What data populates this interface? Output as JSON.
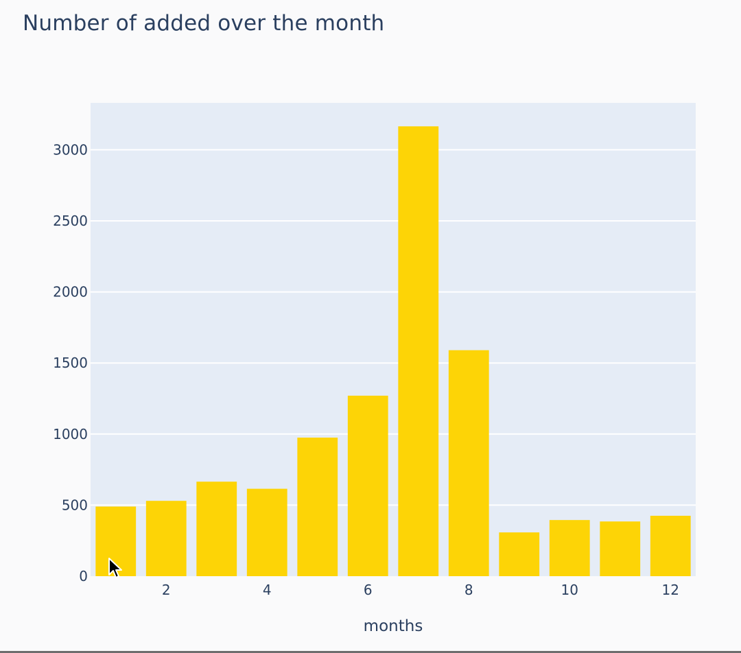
{
  "chart_data": {
    "type": "bar",
    "title": "Number of added over the month",
    "xlabel": "months",
    "ylabel": "",
    "x": [
      1,
      2,
      3,
      4,
      5,
      6,
      7,
      8,
      9,
      10,
      11,
      12
    ],
    "values": [
      490,
      530,
      665,
      615,
      975,
      1270,
      3165,
      1590,
      308,
      395,
      385,
      425
    ],
    "xlim": [
      0.5,
      12.5
    ],
    "ylim": [
      0,
      3330
    ],
    "xticks": [
      2,
      4,
      6,
      8,
      10,
      12
    ],
    "yticks": [
      0,
      500,
      1000,
      1500,
      2000,
      2500,
      3000
    ],
    "grid": true,
    "legend": "none",
    "colors": {
      "bar": "#fdd406",
      "plot_background": "#e5ecf6",
      "grid": "#ffffff",
      "text": "#2a3f5f",
      "page_background": "#fafafb"
    }
  },
  "cursor_icon": "arrow-pointer-icon"
}
